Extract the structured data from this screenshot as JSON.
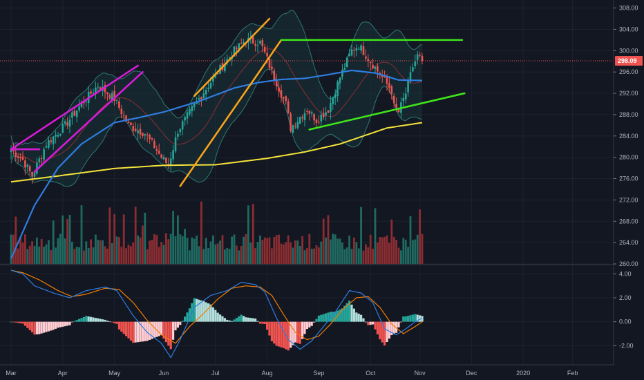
{
  "colors": {
    "background": "#131722",
    "grid": "#1e222d",
    "axis_text": "#b2b5be",
    "up": "#26a69a",
    "down": "#ef5350",
    "vol_up": "#1f6b62",
    "vol_down": "#8c2d32",
    "ma_blue": "#2f7de1",
    "ma_yellow": "#f5e43a",
    "bb_band": "#2c7a74",
    "bb_mid": "#8c2d32",
    "magenta": "#d81bd8",
    "orange": "#f7a31c",
    "green": "#3fe51b",
    "price_tag": "#ef5350",
    "macd_line": "#2f7de1",
    "signal_line": "#f57c00",
    "hist_pos_strong": "#26a69a",
    "hist_pos_weak": "#b2dfdb",
    "hist_neg_strong": "#ef5350",
    "hist_neg_weak": "#ffcdd2"
  },
  "chart_data": [
    {
      "type": "candlestick",
      "title": "",
      "x_axis": {
        "tick_labels": [
          "Mar",
          "Apr",
          "May",
          "Jun",
          "Jul",
          "Aug",
          "Sep",
          "Oct",
          "Nov",
          "Dec",
          "2020",
          "Feb"
        ],
        "tick_positions_index": [
          0,
          22,
          44,
          65,
          87,
          109,
          131,
          153,
          174,
          196,
          218,
          239
        ]
      },
      "y_axis": {
        "ticks": [
          "260.00",
          "264.00",
          "268.00",
          "272.00",
          "276.00",
          "280.00",
          "284.00",
          "288.00",
          "292.00",
          "296.00",
          "300.00",
          "304.00",
          "308.00"
        ],
        "range": [
          260,
          309.5
        ],
        "last_price": "298.09",
        "last_price_value": 298.09
      },
      "anchors_close": [
        [
          0,
          281.5
        ],
        [
          5,
          279.5
        ],
        [
          9,
          276.5
        ],
        [
          15,
          282.5
        ],
        [
          23,
          286
        ],
        [
          30,
          290
        ],
        [
          37,
          293.5
        ],
        [
          44,
          291
        ],
        [
          50,
          286
        ],
        [
          57,
          284.5
        ],
        [
          61,
          282
        ],
        [
          64,
          280
        ],
        [
          67,
          278.5
        ],
        [
          71,
          285
        ],
        [
          80,
          291
        ],
        [
          88,
          296
        ],
        [
          95,
          300
        ],
        [
          100,
          302
        ],
        [
          106,
          301.5
        ],
        [
          108,
          299.5
        ],
        [
          111,
          296
        ],
        [
          114,
          293
        ],
        [
          117,
          290
        ],
        [
          119,
          285.5
        ],
        [
          122,
          287
        ],
        [
          126,
          289
        ],
        [
          130,
          287
        ],
        [
          135,
          289
        ],
        [
          140,
          295
        ],
        [
          145,
          300
        ],
        [
          148,
          301
        ],
        [
          153,
          298
        ],
        [
          158,
          295
        ],
        [
          162,
          292.5
        ],
        [
          163,
          289.5
        ],
        [
          165,
          288.5
        ],
        [
          168,
          292
        ],
        [
          171,
          297
        ],
        [
          173,
          299
        ],
        [
          175,
          298.1
        ]
      ],
      "anchors_ma_blue": [
        [
          0,
          261
        ],
        [
          10,
          271
        ],
        [
          20,
          278
        ],
        [
          30,
          282.5
        ],
        [
          44,
          286.5
        ],
        [
          55,
          287.5
        ],
        [
          65,
          288.5
        ],
        [
          80,
          290.5
        ],
        [
          95,
          293
        ],
        [
          105,
          294
        ],
        [
          115,
          294.6
        ],
        [
          125,
          294.8
        ],
        [
          135,
          295.5
        ],
        [
          145,
          296.3
        ],
        [
          155,
          295.8
        ],
        [
          165,
          294.5
        ],
        [
          175,
          294.4
        ]
      ],
      "anchors_ma_yellow": [
        [
          0,
          275.4
        ],
        [
          20,
          276.5
        ],
        [
          44,
          277.9
        ],
        [
          65,
          278.5
        ],
        [
          87,
          278.6
        ],
        [
          109,
          279.8
        ],
        [
          125,
          281
        ],
        [
          140,
          282.5
        ],
        [
          150,
          284
        ],
        [
          160,
          285.5
        ],
        [
          175,
          286.5
        ]
      ],
      "trendlines": [
        {
          "name": "magenta-channel-upper",
          "color": "magenta",
          "points": [
            [
              0,
              281.5
            ],
            [
              54,
              297.2
            ]
          ]
        },
        {
          "name": "magenta-channel-lower",
          "color": "magenta",
          "points": [
            [
              10,
              277.3
            ],
            [
              56,
              296.0
            ]
          ]
        },
        {
          "name": "magenta-horizontal",
          "color": "magenta",
          "points": [
            [
              0,
              281.5
            ],
            [
              12,
              281.5
            ]
          ]
        },
        {
          "name": "orange-channel-upper",
          "color": "orange",
          "points": [
            [
              78,
              291.5
            ],
            [
              110,
              306
            ]
          ]
        },
        {
          "name": "orange-channel-lower",
          "color": "orange",
          "points": [
            [
              72,
              274.6
            ],
            [
              115,
              302
            ]
          ]
        },
        {
          "name": "green-resistance",
          "color": "green",
          "points": [
            [
              115,
              302
            ],
            [
              192,
              302
            ]
          ]
        },
        {
          "name": "green-support",
          "color": "green",
          "points": [
            [
              127,
              285.2
            ],
            [
              193,
              292
            ]
          ]
        }
      ],
      "volume_scale_note": "volume bars scaled to price panel bottom (~260-272)"
    },
    {
      "type": "macd",
      "y_axis": {
        "ticks": [
          "4.00",
          "2.00",
          "0.00",
          "-2.00"
        ],
        "range": [
          -3.6,
          4.6
        ]
      },
      "anchors_macd": [
        [
          0,
          4.3
        ],
        [
          5,
          4.0
        ],
        [
          10,
          3.0
        ],
        [
          18,
          2.4
        ],
        [
          25,
          2.0
        ],
        [
          32,
          2.6
        ],
        [
          40,
          2.9
        ],
        [
          45,
          2.6
        ],
        [
          52,
          0.5
        ],
        [
          58,
          -0.9
        ],
        [
          64,
          -1.8
        ],
        [
          68,
          -3.0
        ],
        [
          72,
          -1.5
        ],
        [
          78,
          1.2
        ],
        [
          85,
          2.2
        ],
        [
          92,
          2.6
        ],
        [
          98,
          3.3
        ],
        [
          104,
          3.1
        ],
        [
          108,
          2.5
        ],
        [
          113,
          0.3
        ],
        [
          118,
          -1.5
        ],
        [
          123,
          -2.3
        ],
        [
          128,
          -1.6
        ],
        [
          133,
          -0.4
        ],
        [
          138,
          0.8
        ],
        [
          144,
          2.6
        ],
        [
          149,
          2.4
        ],
        [
          154,
          1.6
        ],
        [
          159,
          -0.6
        ],
        [
          164,
          -1.1
        ],
        [
          168,
          -0.6
        ],
        [
          172,
          0.0
        ],
        [
          175,
          0.3
        ]
      ],
      "anchors_signal": [
        [
          0,
          4.3
        ],
        [
          5,
          4.1
        ],
        [
          12,
          3.5
        ],
        [
          20,
          2.6
        ],
        [
          26,
          2.1
        ],
        [
          32,
          2.3
        ],
        [
          40,
          2.8
        ],
        [
          46,
          2.7
        ],
        [
          52,
          1.6
        ],
        [
          58,
          0.1
        ],
        [
          64,
          -1.1
        ],
        [
          70,
          -1.8
        ],
        [
          76,
          -0.4
        ],
        [
          82,
          0.7
        ],
        [
          88,
          1.9
        ],
        [
          94,
          2.8
        ],
        [
          100,
          3.0
        ],
        [
          106,
          2.9
        ],
        [
          111,
          2.2
        ],
        [
          116,
          0.6
        ],
        [
          121,
          -0.9
        ],
        [
          126,
          -1.5
        ],
        [
          131,
          -1.2
        ],
        [
          136,
          -0.2
        ],
        [
          141,
          1.0
        ],
        [
          147,
          2.0
        ],
        [
          152,
          2.1
        ],
        [
          157,
          1.2
        ],
        [
          162,
          -0.2
        ],
        [
          167,
          -1.0
        ],
        [
          172,
          -0.4
        ],
        [
          175,
          0.0
        ]
      ]
    }
  ]
}
